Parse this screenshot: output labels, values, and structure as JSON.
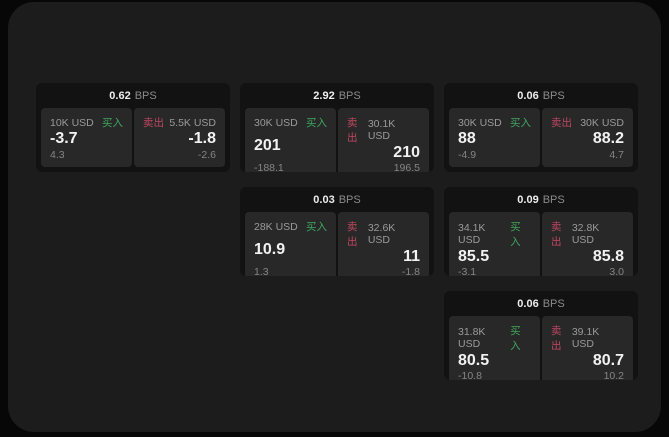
{
  "labels": {
    "buy": "买入",
    "sell": "卖出",
    "bps_unit": "BPS"
  },
  "colors": {
    "background": "#070707",
    "panel_bg": "#1c1c1c",
    "card_bg": "#121212",
    "subpanel_bg": "#282828",
    "buy_green": "#3ea65f",
    "sell_red": "#bd4760"
  },
  "cards": [
    {
      "bps": "0.62",
      "buy": {
        "notional": "10K USD",
        "price": "-3.7",
        "delta": "4.3"
      },
      "sell": {
        "notional": "5.5K USD",
        "price": "-1.8",
        "delta": "-2.6"
      }
    },
    {
      "bps": "2.92",
      "buy": {
        "notional": "30K USD",
        "price": "201",
        "delta": "-188.1"
      },
      "sell": {
        "notional": "30.1K USD",
        "price": "210",
        "delta": "196.5"
      }
    },
    {
      "bps": "0.06",
      "buy": {
        "notional": "30K USD",
        "price": "88",
        "delta": "-4.9"
      },
      "sell": {
        "notional": "30K USD",
        "price": "88.2",
        "delta": "4.7"
      }
    },
    {
      "bps": "0.03",
      "buy": {
        "notional": "28K USD",
        "price": "10.9",
        "delta": "1.3"
      },
      "sell": {
        "notional": "32.6K USD",
        "price": "11",
        "delta": "-1.8"
      }
    },
    {
      "bps": "0.09",
      "buy": {
        "notional": "34.1K USD",
        "price": "85.5",
        "delta": "-3.1"
      },
      "sell": {
        "notional": "32.8K USD",
        "price": "85.8",
        "delta": "3.0"
      }
    },
    {
      "bps": "0.06",
      "buy": {
        "notional": "31.8K USD",
        "price": "80.5",
        "delta": "-10.8"
      },
      "sell": {
        "notional": "39.1K USD",
        "price": "80.7",
        "delta": "10.2"
      }
    }
  ]
}
